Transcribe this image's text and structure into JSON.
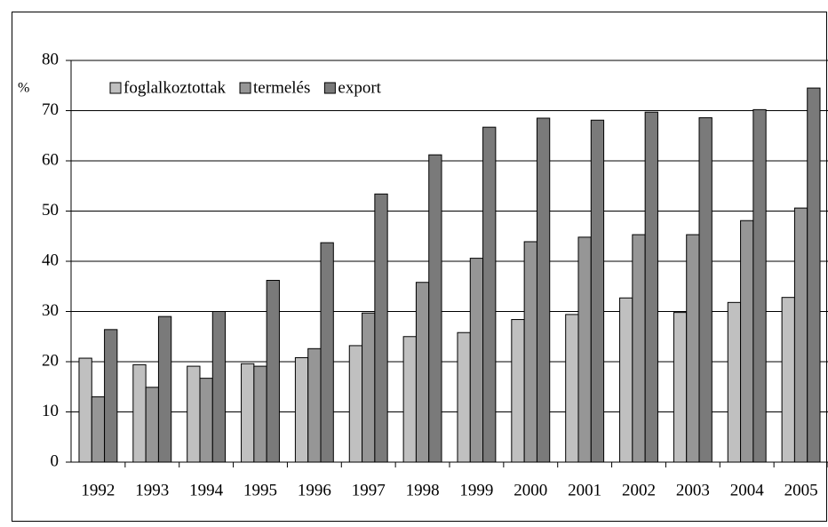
{
  "chart_data": {
    "type": "bar",
    "y_label": "%",
    "categories": [
      "1992",
      "1993",
      "1994",
      "1995",
      "1996",
      "1997",
      "1998",
      "1999",
      "2000",
      "2001",
      "2002",
      "2003",
      "2004",
      "2005"
    ],
    "series": [
      {
        "name": "foglalkoztottak",
        "color": "#c0c0c0",
        "values": [
          20.7,
          19.4,
          19.1,
          19.6,
          20.8,
          23.2,
          25.0,
          25.8,
          28.4,
          29.4,
          32.7,
          29.8,
          31.8,
          32.8
        ]
      },
      {
        "name": "termelés",
        "color": "#969696",
        "values": [
          13.0,
          14.9,
          16.7,
          19.1,
          22.6,
          29.7,
          35.8,
          40.6,
          43.9,
          44.8,
          45.3,
          45.3,
          48.1,
          50.6
        ]
      },
      {
        "name": "export",
        "color": "#7a7a7a",
        "values": [
          26.4,
          29.0,
          30.0,
          36.2,
          43.7,
          53.4,
          61.2,
          66.7,
          68.5,
          68.1,
          69.7,
          68.6,
          70.2,
          74.5
        ]
      }
    ],
    "ylim": [
      0,
      80
    ],
    "yticks": [
      0,
      10,
      20,
      30,
      40,
      50,
      60,
      70,
      80
    ],
    "grid": true,
    "legend": "top-left"
  }
}
